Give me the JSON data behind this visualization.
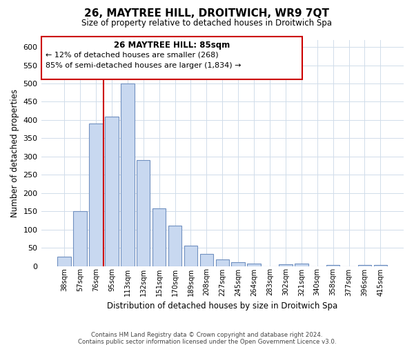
{
  "title": "26, MAYTREE HILL, DROITWICH, WR9 7QT",
  "subtitle": "Size of property relative to detached houses in Droitwich Spa",
  "xlabel": "Distribution of detached houses by size in Droitwich Spa",
  "ylabel": "Number of detached properties",
  "bar_labels": [
    "38sqm",
    "57sqm",
    "76sqm",
    "95sqm",
    "113sqm",
    "132sqm",
    "151sqm",
    "170sqm",
    "189sqm",
    "208sqm",
    "227sqm",
    "245sqm",
    "264sqm",
    "283sqm",
    "302sqm",
    "321sqm",
    "340sqm",
    "358sqm",
    "377sqm",
    "396sqm",
    "415sqm"
  ],
  "bar_values": [
    25,
    150,
    390,
    410,
    500,
    290,
    158,
    110,
    55,
    33,
    18,
    10,
    7,
    0,
    5,
    7,
    0,
    2,
    0,
    2,
    2
  ],
  "bar_color": "#c8d8f0",
  "bar_edge_color": "#7090c0",
  "ylim": [
    0,
    620
  ],
  "yticks": [
    0,
    50,
    100,
    150,
    200,
    250,
    300,
    350,
    400,
    450,
    500,
    550,
    600
  ],
  "vline_x": 2.5,
  "vline_color": "#cc0000",
  "annotation_title": "26 MAYTREE HILL: 85sqm",
  "annotation_line1": "← 12% of detached houses are smaller (268)",
  "annotation_line2": "85% of semi-detached houses are larger (1,834) →",
  "annotation_box_color": "#ffffff",
  "annotation_box_edge": "#cc0000",
  "footer1": "Contains HM Land Registry data © Crown copyright and database right 2024.",
  "footer2": "Contains public sector information licensed under the Open Government Licence v3.0.",
  "bg_color": "#ffffff",
  "grid_color": "#d0dcea"
}
